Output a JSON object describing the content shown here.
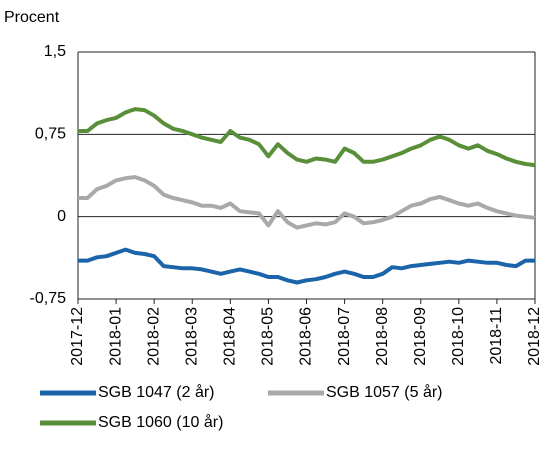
{
  "chart_data": {
    "type": "line",
    "y_label": "Procent",
    "categories": [
      "2017-12",
      null,
      null,
      null,
      "2018-01",
      null,
      null,
      null,
      "2018-02",
      null,
      null,
      null,
      "2018-03",
      null,
      null,
      null,
      "2018-04",
      null,
      null,
      null,
      "2018-05",
      null,
      null,
      null,
      "2018-06",
      null,
      null,
      null,
      "2018-07",
      null,
      null,
      null,
      "2018-08",
      null,
      null,
      null,
      "2018-09",
      null,
      null,
      null,
      "2018-10",
      null,
      null,
      null,
      "2018-11",
      null,
      null,
      null,
      "2018-12"
    ],
    "series": [
      {
        "name": "SGB 1047 (2 år)",
        "color": "#1c64aa",
        "values": [
          -0.4,
          -0.4,
          -0.37,
          -0.36,
          -0.33,
          -0.3,
          -0.33,
          -0.34,
          -0.36,
          -0.45,
          -0.46,
          -0.47,
          -0.47,
          -0.48,
          -0.5,
          -0.52,
          -0.5,
          -0.48,
          -0.5,
          -0.52,
          -0.55,
          -0.55,
          -0.58,
          -0.6,
          -0.58,
          -0.57,
          -0.55,
          -0.52,
          -0.5,
          -0.52,
          -0.55,
          -0.55,
          -0.52,
          -0.46,
          -0.47,
          -0.45,
          -0.44,
          -0.43,
          -0.42,
          -0.41,
          -0.42,
          -0.4,
          -0.41,
          -0.42,
          -0.42,
          -0.44,
          -0.45,
          -0.4,
          -0.4
        ]
      },
      {
        "name": "SGB 1057 (5 år)",
        "color": "#a9a9a9",
        "values": [
          0.17,
          0.17,
          0.25,
          0.28,
          0.33,
          0.35,
          0.36,
          0.33,
          0.28,
          0.2,
          0.17,
          0.15,
          0.13,
          0.1,
          0.1,
          0.08,
          0.12,
          0.05,
          0.04,
          0.03,
          -0.08,
          0.05,
          -0.05,
          -0.1,
          -0.08,
          -0.06,
          -0.07,
          -0.05,
          0.03,
          0.0,
          -0.06,
          -0.05,
          -0.03,
          0.0,
          0.05,
          0.1,
          0.12,
          0.16,
          0.18,
          0.15,
          0.12,
          0.1,
          0.12,
          0.08,
          0.05,
          0.03,
          0.01,
          0.0,
          -0.01
        ]
      },
      {
        "name": "SGB 1060 (10 år)",
        "color": "#5a8f3a",
        "values": [
          0.78,
          0.78,
          0.85,
          0.88,
          0.9,
          0.95,
          0.98,
          0.97,
          0.92,
          0.85,
          0.8,
          0.78,
          0.75,
          0.72,
          0.7,
          0.68,
          0.78,
          0.72,
          0.7,
          0.66,
          0.55,
          0.66,
          0.58,
          0.52,
          0.5,
          0.53,
          0.52,
          0.5,
          0.62,
          0.58,
          0.5,
          0.5,
          0.52,
          0.55,
          0.58,
          0.62,
          0.65,
          0.7,
          0.73,
          0.7,
          0.65,
          0.62,
          0.65,
          0.6,
          0.57,
          0.53,
          0.5,
          0.48,
          0.47
        ]
      }
    ],
    "ylim": [
      -0.75,
      1.5
    ],
    "yticks": [
      {
        "value": -0.75,
        "label": "-0,75"
      },
      0,
      {
        "value": 0.75,
        "label": "0,75"
      },
      {
        "value": 1.5,
        "label": "1,5"
      }
    ],
    "grid": true,
    "legend": "bottom"
  }
}
